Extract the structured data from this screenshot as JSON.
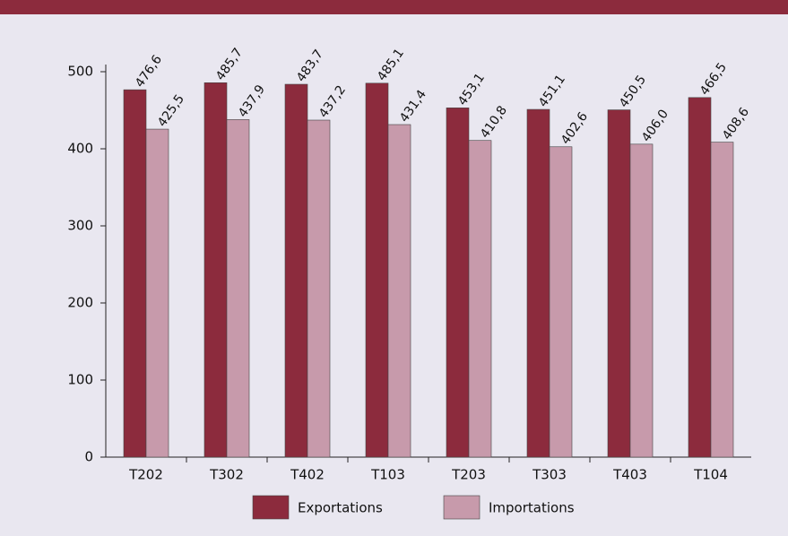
{
  "chart_data": {
    "type": "bar",
    "categories": [
      "T202",
      "T302",
      "T402",
      "T103",
      "T203",
      "T303",
      "T403",
      "T104"
    ],
    "series": [
      {
        "name": "Exportations",
        "color": "#8c2b3d",
        "values": [
          476.6,
          485.7,
          483.7,
          485.1,
          453.1,
          451.1,
          450.5,
          466.5
        ],
        "value_labels": [
          "476,6",
          "485,7",
          "483,7",
          "485,1",
          "453,1",
          "451,1",
          "450,5",
          "466,5"
        ]
      },
      {
        "name": "Importations",
        "color": "#c79aab",
        "values": [
          425.5,
          437.9,
          437.2,
          431.4,
          410.8,
          402.6,
          406.0,
          408.6
        ],
        "value_labels": [
          "425,5",
          "437,9",
          "437,2",
          "431,4",
          "410,8",
          "402,6",
          "406,0",
          "408,6"
        ]
      }
    ],
    "ylim": [
      0,
      500
    ],
    "yticks": [
      0,
      100,
      200,
      300,
      400,
      500
    ]
  }
}
